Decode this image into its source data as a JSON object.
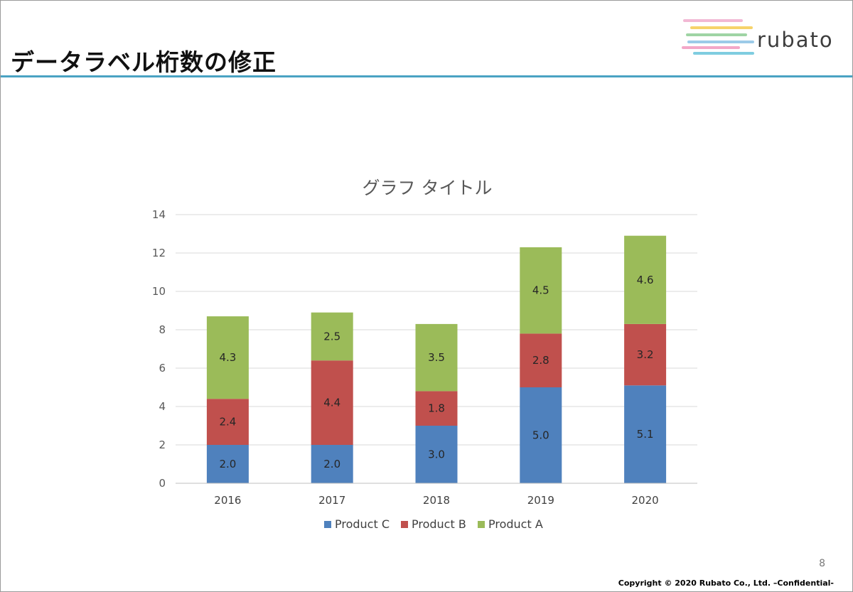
{
  "slide": {
    "title": "データラベル桁数の修正",
    "logo_text": "rubato",
    "logo_colors": [
      "#f2b8d4",
      "#f6d36b",
      "#9fd4a4",
      "#9ccbe8",
      "#f3a7c8",
      "#7fcde0"
    ],
    "page_number": "8",
    "copyright": "Copyright © 2020 Rubato Co., Ltd. –Confidential-",
    "accent_color": "#4aa3c3"
  },
  "chart_data": {
    "type": "bar",
    "stacked": true,
    "title": "グラフ タイトル",
    "categories": [
      "2016",
      "2017",
      "2018",
      "2019",
      "2020"
    ],
    "series": [
      {
        "name": "Product C",
        "color": "#4f81bd",
        "values": [
          2.0,
          2.0,
          3.0,
          5.0,
          5.1
        ],
        "labels": [
          "2.0",
          "2.0",
          "3.0",
          "5.0",
          "5.1"
        ]
      },
      {
        "name": "Product B",
        "color": "#c0504d",
        "values": [
          2.4,
          4.4,
          1.8,
          2.8,
          3.2
        ],
        "labels": [
          "2.4",
          "4.4",
          "1.8",
          "2.8",
          "3.2"
        ]
      },
      {
        "name": "Product A",
        "color": "#9bbb59",
        "values": [
          4.3,
          2.5,
          3.5,
          4.5,
          4.6
        ],
        "labels": [
          "4.3",
          "2.5",
          "3.5",
          "4.5",
          "4.6"
        ]
      }
    ],
    "ylim": [
      0,
      14
    ],
    "yticks": [
      "0",
      "2",
      "4",
      "6",
      "8",
      "10",
      "12",
      "14"
    ],
    "xlabel": "",
    "ylabel": "",
    "grid": true,
    "legend": "bottom"
  }
}
